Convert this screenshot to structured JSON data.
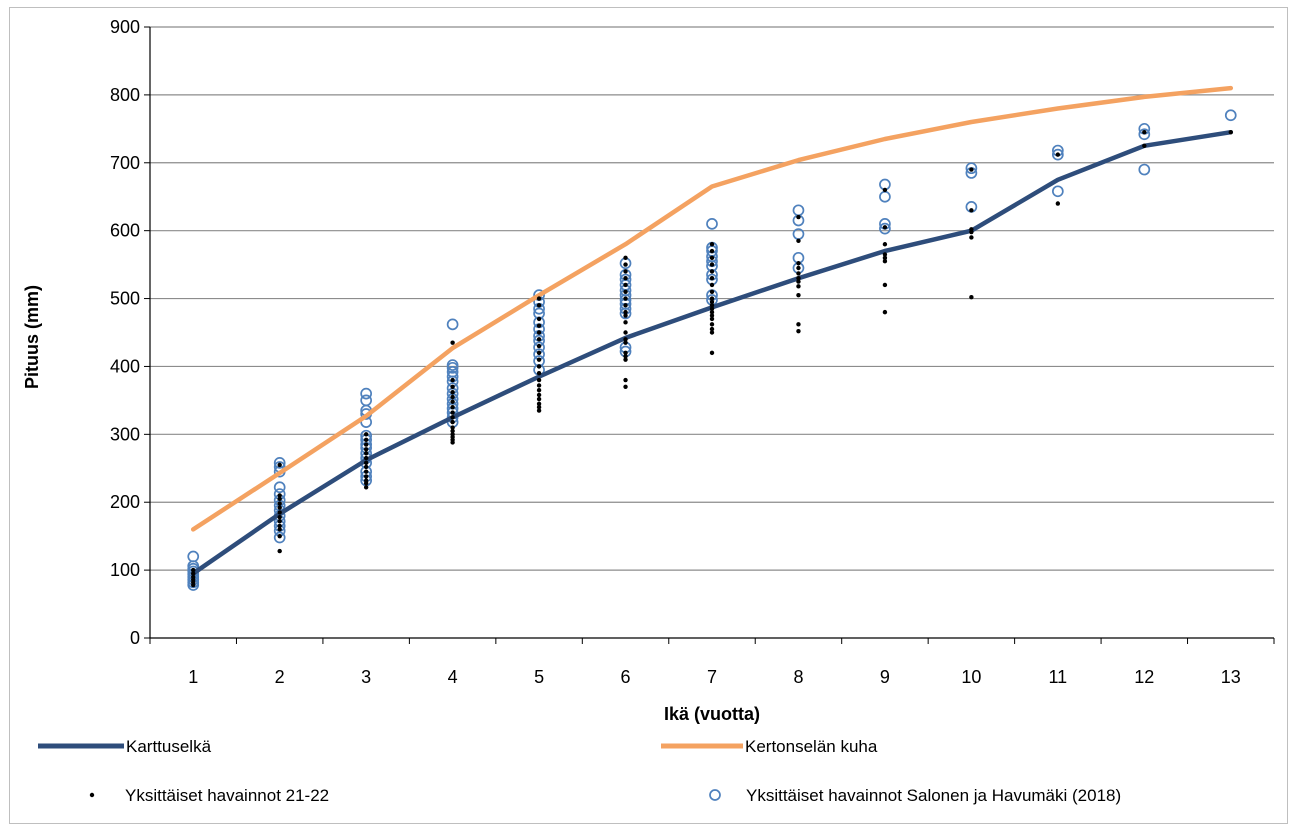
{
  "chart_data": {
    "type": "line",
    "xlabel": "Ikä (vuotta)",
    "ylabel": "Pituus (mm)",
    "xlim": [
      0.5,
      13.5
    ],
    "ylim": [
      0,
      900
    ],
    "x_ticks": [
      1,
      2,
      3,
      4,
      5,
      6,
      7,
      8,
      9,
      10,
      11,
      12,
      13
    ],
    "y_ticks": [
      0,
      100,
      200,
      300,
      400,
      500,
      600,
      700,
      800,
      900
    ],
    "grid": "horizontal",
    "legend_position": "bottom",
    "series": [
      {
        "name": "Karttuselkä",
        "kind": "line",
        "color": "#2e4d7b",
        "x": [
          1,
          2,
          3,
          4,
          5,
          6,
          7,
          8,
          9,
          10,
          11,
          12,
          13
        ],
        "y": [
          95,
          183,
          262,
          325,
          385,
          442,
          487,
          530,
          570,
          600,
          675,
          725,
          745
        ]
      },
      {
        "name": "Kertonselän kuha",
        "kind": "line",
        "color": "#f4a261",
        "x": [
          1,
          2,
          3,
          4,
          5,
          6,
          7,
          8,
          9,
          10,
          11,
          12,
          13
        ],
        "y": [
          160,
          243,
          327,
          427,
          505,
          580,
          665,
          704,
          735,
          760,
          780,
          797,
          810
        ]
      },
      {
        "name": "Yksittäiset havainnot 21-22",
        "kind": "dots",
        "color": "#000000",
        "points": [
          [
            1,
            78
          ],
          [
            1,
            82
          ],
          [
            1,
            86
          ],
          [
            1,
            90
          ],
          [
            1,
            95
          ],
          [
            1,
            100
          ],
          [
            2,
            128
          ],
          [
            2,
            150
          ],
          [
            2,
            160
          ],
          [
            2,
            165
          ],
          [
            2,
            172
          ],
          [
            2,
            178
          ],
          [
            2,
            185
          ],
          [
            2,
            192
          ],
          [
            2,
            198
          ],
          [
            2,
            205
          ],
          [
            2,
            210
          ],
          [
            2,
            255
          ],
          [
            3,
            222
          ],
          [
            3,
            228
          ],
          [
            3,
            232
          ],
          [
            3,
            238
          ],
          [
            3,
            245
          ],
          [
            3,
            252
          ],
          [
            3,
            258
          ],
          [
            3,
            265
          ],
          [
            3,
            272
          ],
          [
            3,
            278
          ],
          [
            3,
            285
          ],
          [
            3,
            292
          ],
          [
            3,
            300
          ],
          [
            4,
            288
          ],
          [
            4,
            292
          ],
          [
            4,
            296
          ],
          [
            4,
            300
          ],
          [
            4,
            305
          ],
          [
            4,
            310
          ],
          [
            4,
            318
          ],
          [
            4,
            325
          ],
          [
            4,
            332
          ],
          [
            4,
            340
          ],
          [
            4,
            348
          ],
          [
            4,
            355
          ],
          [
            4,
            362
          ],
          [
            4,
            370
          ],
          [
            4,
            380
          ],
          [
            4,
            435
          ],
          [
            5,
            335
          ],
          [
            5,
            340
          ],
          [
            5,
            345
          ],
          [
            5,
            352
          ],
          [
            5,
            358
          ],
          [
            5,
            365
          ],
          [
            5,
            372
          ],
          [
            5,
            380
          ],
          [
            5,
            390
          ],
          [
            5,
            400
          ],
          [
            5,
            410
          ],
          [
            5,
            420
          ],
          [
            5,
            430
          ],
          [
            5,
            440
          ],
          [
            5,
            450
          ],
          [
            5,
            460
          ],
          [
            5,
            470
          ],
          [
            5,
            490
          ],
          [
            5,
            500
          ],
          [
            6,
            370
          ],
          [
            6,
            380
          ],
          [
            6,
            410
          ],
          [
            6,
            415
          ],
          [
            6,
            420
          ],
          [
            6,
            435
          ],
          [
            6,
            440
          ],
          [
            6,
            450
          ],
          [
            6,
            465
          ],
          [
            6,
            475
          ],
          [
            6,
            480
          ],
          [
            6,
            490
          ],
          [
            6,
            500
          ],
          [
            6,
            510
          ],
          [
            6,
            520
          ],
          [
            6,
            530
          ],
          [
            6,
            540
          ],
          [
            6,
            550
          ],
          [
            6,
            560
          ],
          [
            7,
            420
          ],
          [
            7,
            450
          ],
          [
            7,
            455
          ],
          [
            7,
            462
          ],
          [
            7,
            470
          ],
          [
            7,
            475
          ],
          [
            7,
            480
          ],
          [
            7,
            485
          ],
          [
            7,
            490
          ],
          [
            7,
            495
          ],
          [
            7,
            500
          ],
          [
            7,
            510
          ],
          [
            7,
            520
          ],
          [
            7,
            530
          ],
          [
            7,
            540
          ],
          [
            7,
            550
          ],
          [
            7,
            560
          ],
          [
            7,
            570
          ],
          [
            7,
            580
          ],
          [
            8,
            452
          ],
          [
            8,
            462
          ],
          [
            8,
            505
          ],
          [
            8,
            518
          ],
          [
            8,
            525
          ],
          [
            8,
            530
          ],
          [
            8,
            537
          ],
          [
            8,
            545
          ],
          [
            8,
            552
          ],
          [
            8,
            585
          ],
          [
            8,
            620
          ],
          [
            9,
            480
          ],
          [
            9,
            520
          ],
          [
            9,
            555
          ],
          [
            9,
            560
          ],
          [
            9,
            565
          ],
          [
            9,
            580
          ],
          [
            9,
            605
          ],
          [
            9,
            660
          ],
          [
            10,
            502
          ],
          [
            10,
            590
          ],
          [
            10,
            598
          ],
          [
            10,
            602
          ],
          [
            10,
            630
          ],
          [
            10,
            690
          ],
          [
            11,
            640
          ],
          [
            11,
            712
          ],
          [
            12,
            725
          ],
          [
            12,
            745
          ],
          [
            13,
            745
          ]
        ]
      },
      {
        "name": "Yksittäiset havainnot Salonen ja Havumäki (2018)",
        "kind": "rings",
        "color": "#4f81bd",
        "points": [
          [
            1,
            78
          ],
          [
            1,
            82
          ],
          [
            1,
            86
          ],
          [
            1,
            90
          ],
          [
            1,
            94
          ],
          [
            1,
            98
          ],
          [
            1,
            102
          ],
          [
            1,
            106
          ],
          [
            1,
            120
          ],
          [
            2,
            148
          ],
          [
            2,
            158
          ],
          [
            2,
            165
          ],
          [
            2,
            172
          ],
          [
            2,
            180
          ],
          [
            2,
            188
          ],
          [
            2,
            195
          ],
          [
            2,
            203
          ],
          [
            2,
            212
          ],
          [
            2,
            222
          ],
          [
            2,
            245
          ],
          [
            2,
            252
          ],
          [
            2,
            258
          ],
          [
            3,
            232
          ],
          [
            3,
            238
          ],
          [
            3,
            245
          ],
          [
            3,
            258
          ],
          [
            3,
            265
          ],
          [
            3,
            272
          ],
          [
            3,
            280
          ],
          [
            3,
            285
          ],
          [
            3,
            292
          ],
          [
            3,
            298
          ],
          [
            3,
            318
          ],
          [
            3,
            330
          ],
          [
            3,
            335
          ],
          [
            3,
            350
          ],
          [
            3,
            360
          ],
          [
            4,
            318
          ],
          [
            4,
            325
          ],
          [
            4,
            332
          ],
          [
            4,
            338
          ],
          [
            4,
            345
          ],
          [
            4,
            352
          ],
          [
            4,
            360
          ],
          [
            4,
            368
          ],
          [
            4,
            378
          ],
          [
            4,
            385
          ],
          [
            4,
            392
          ],
          [
            4,
            398
          ],
          [
            4,
            402
          ],
          [
            4,
            462
          ],
          [
            5,
            395
          ],
          [
            5,
            408
          ],
          [
            5,
            418
          ],
          [
            5,
            428
          ],
          [
            5,
            438
          ],
          [
            5,
            445
          ],
          [
            5,
            455
          ],
          [
            5,
            465
          ],
          [
            5,
            478
          ],
          [
            5,
            485
          ],
          [
            5,
            495
          ],
          [
            5,
            505
          ],
          [
            6,
            422
          ],
          [
            6,
            428
          ],
          [
            6,
            478
          ],
          [
            6,
            485
          ],
          [
            6,
            492
          ],
          [
            6,
            498
          ],
          [
            6,
            505
          ],
          [
            6,
            512
          ],
          [
            6,
            520
          ],
          [
            6,
            528
          ],
          [
            6,
            535
          ],
          [
            6,
            552
          ],
          [
            7,
            498
          ],
          [
            7,
            505
          ],
          [
            7,
            528
          ],
          [
            7,
            535
          ],
          [
            7,
            548
          ],
          [
            7,
            555
          ],
          [
            7,
            562
          ],
          [
            7,
            570
          ],
          [
            7,
            575
          ],
          [
            7,
            610
          ],
          [
            8,
            545
          ],
          [
            8,
            560
          ],
          [
            8,
            595
          ],
          [
            8,
            615
          ],
          [
            8,
            630
          ],
          [
            9,
            603
          ],
          [
            9,
            610
          ],
          [
            9,
            650
          ],
          [
            9,
            668
          ],
          [
            10,
            635
          ],
          [
            10,
            685
          ],
          [
            10,
            692
          ],
          [
            11,
            658
          ],
          [
            11,
            712
          ],
          [
            11,
            718
          ],
          [
            12,
            690
          ],
          [
            12,
            742
          ],
          [
            12,
            750
          ],
          [
            13,
            770
          ]
        ]
      }
    ]
  }
}
